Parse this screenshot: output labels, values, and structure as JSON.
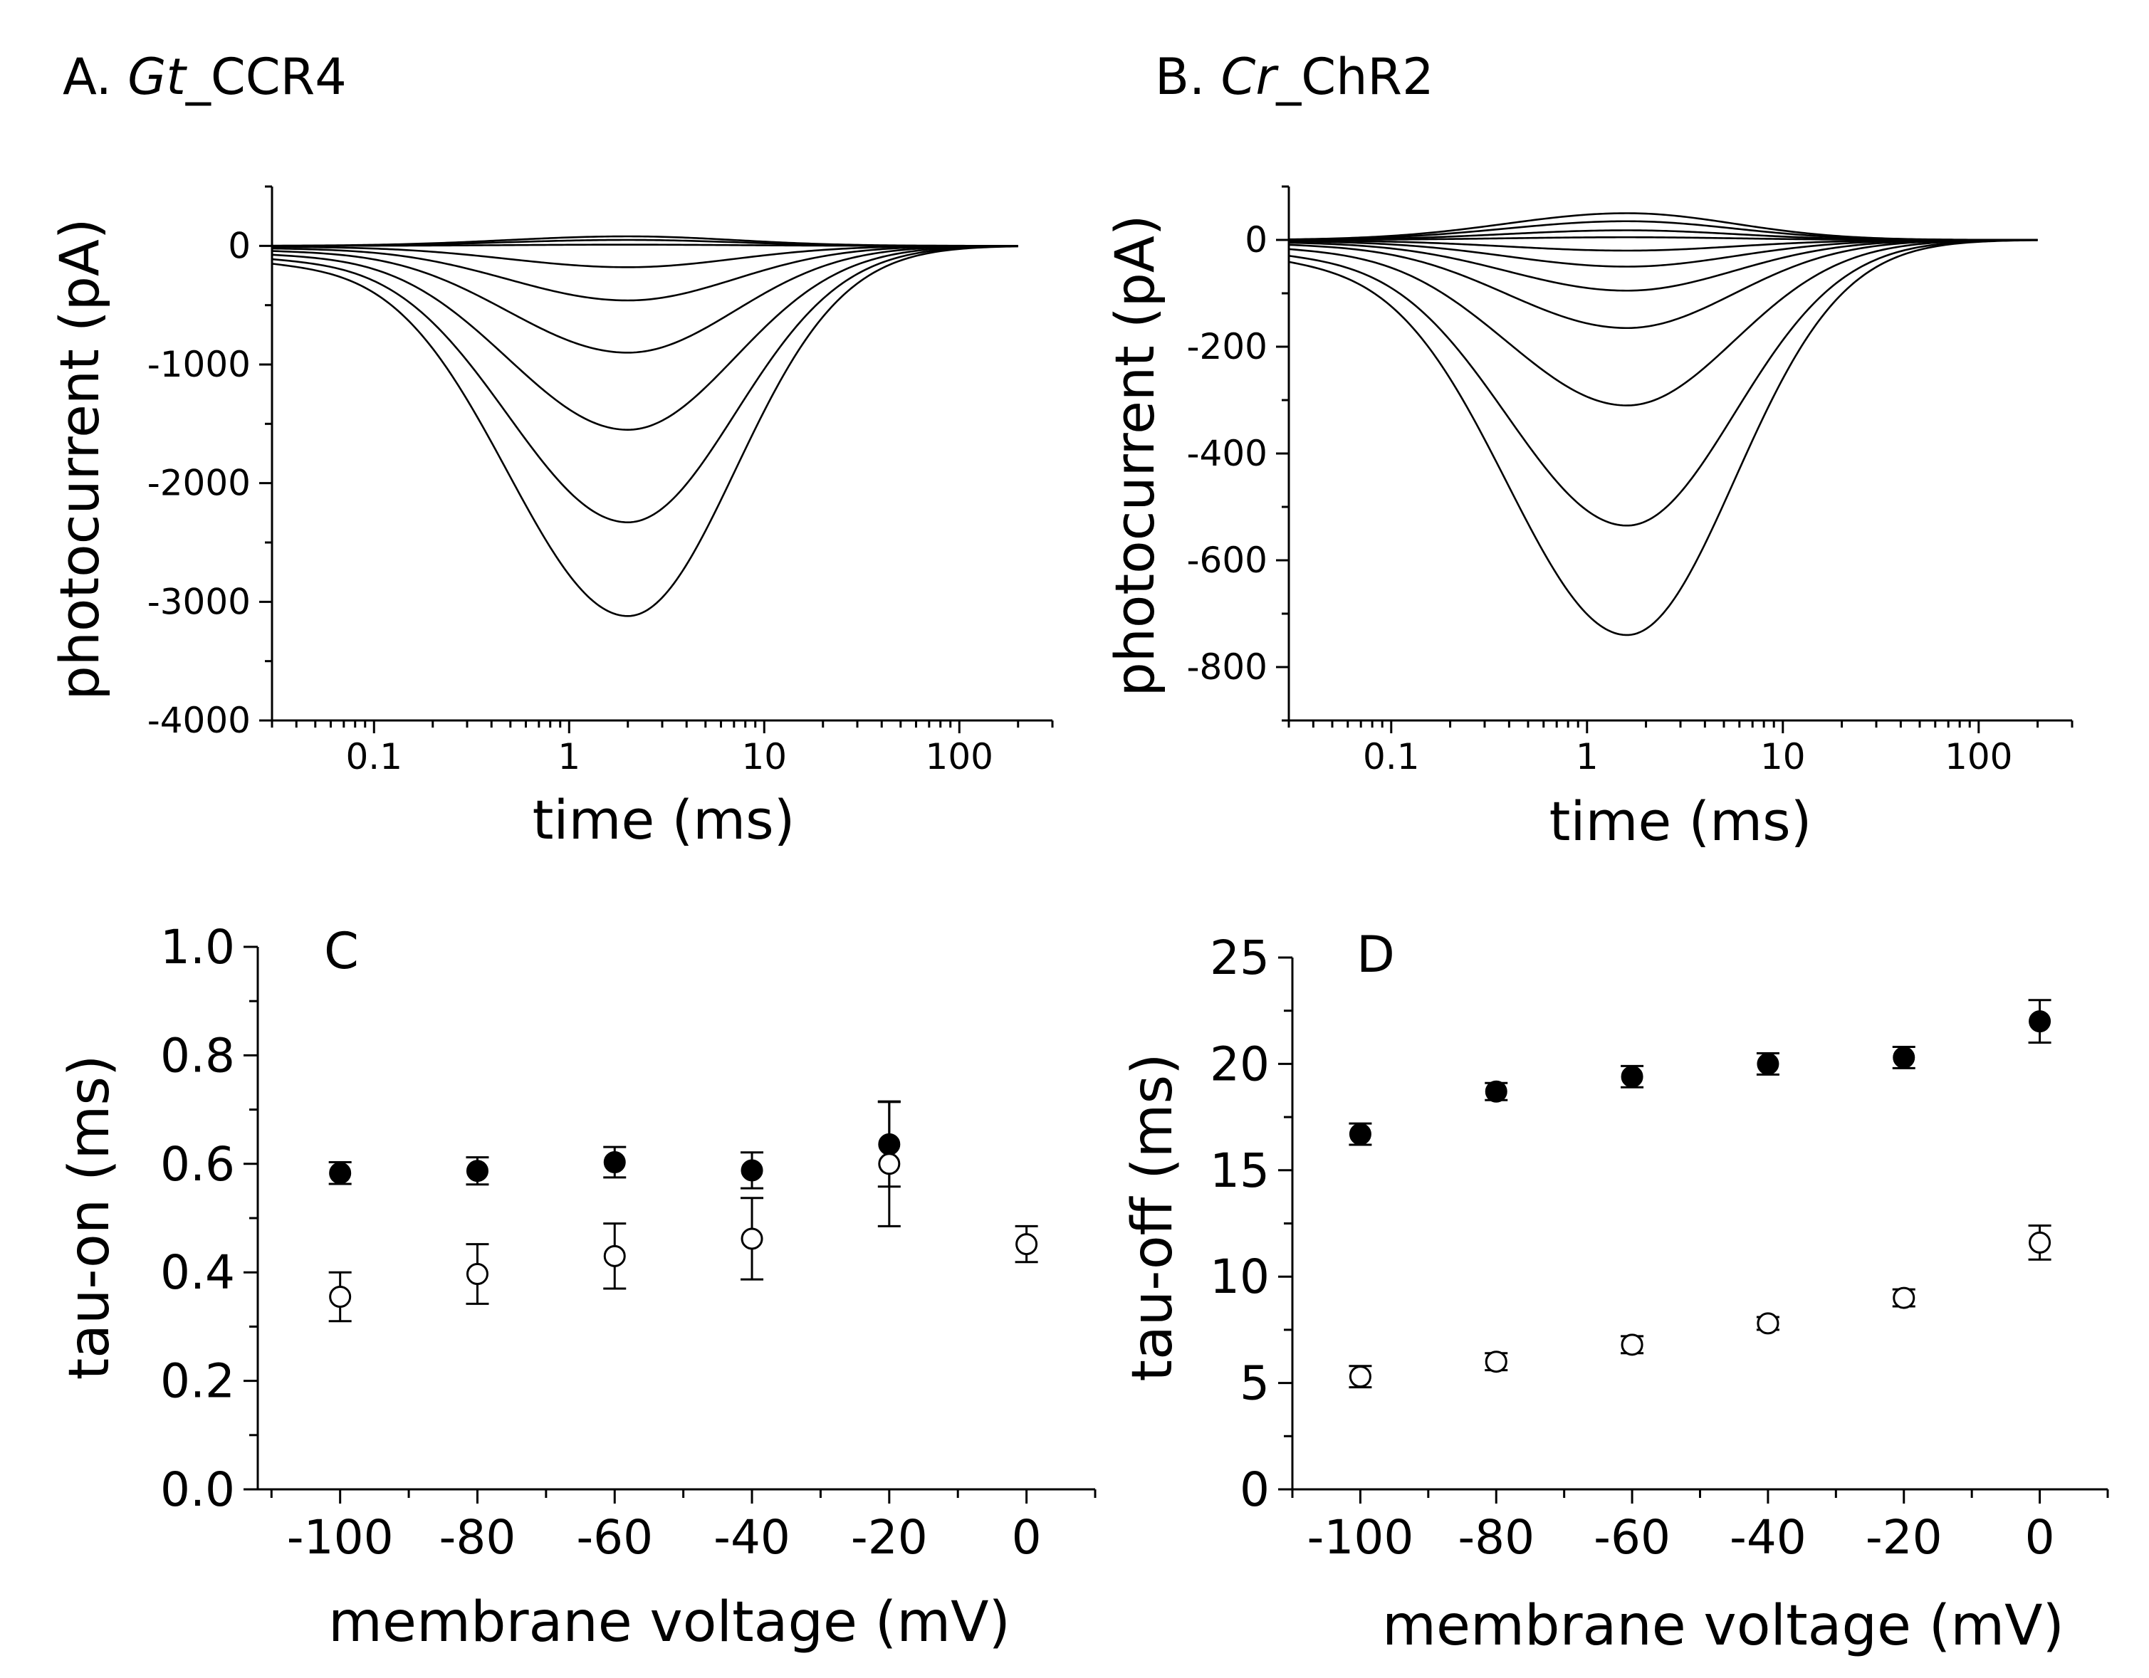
{
  "chart_data": [
    {
      "id": "A",
      "type": "line",
      "title_prefix": "A. ",
      "title_italic": "Gt",
      "title_suffix": "_CCR4",
      "xlabel": "time (ms)",
      "ylabel": "photocurrent (pA)",
      "xscale": "log",
      "xlim": [
        0.03,
        300
      ],
      "ylim": [
        -4000,
        500
      ],
      "xticks": [
        0.1,
        1,
        10,
        100
      ],
      "xtick_labels": [
        "0.1",
        "1",
        "10",
        "100"
      ],
      "yticks": [
        0,
        -1000,
        -2000,
        -3000,
        -4000
      ],
      "ytick_labels": [
        "0",
        "-1000",
        "-2000",
        "-3000",
        "-4000"
      ],
      "trace_peaks": [
        80,
        50,
        10,
        -180,
        -460,
        -900,
        -1550,
        -2330,
        -3120
      ],
      "peak_time_ms": 2,
      "end_time_ms": 200
    },
    {
      "id": "B",
      "type": "line",
      "title_prefix": "B. ",
      "title_italic": "Cr",
      "title_suffix": "_ChR2",
      "xlabel": "time (ms)",
      "ylabel": "photocurrent (pA)",
      "xscale": "log",
      "xlim": [
        0.03,
        300
      ],
      "ylim": [
        -900,
        100
      ],
      "xticks": [
        0.1,
        1,
        10,
        100
      ],
      "xtick_labels": [
        "0.1",
        "1",
        "10",
        "100"
      ],
      "yticks": [
        0,
        -200,
        -400,
        -600,
        -800
      ],
      "ytick_labels": [
        "0",
        "-200",
        "-400",
        "-600",
        "-800"
      ],
      "trace_peaks": [
        50,
        35,
        18,
        5,
        -20,
        -50,
        -95,
        -165,
        -310,
        -535,
        -740
      ],
      "peak_time_ms": 1.6,
      "end_time_ms": 200
    },
    {
      "id": "C",
      "type": "scatter",
      "panel_label": "C",
      "xlabel": "membrane voltage (mV)",
      "ylabel": "tau-on (ms)",
      "xlim": [
        -112,
        10
      ],
      "ylim": [
        0.0,
        1.0
      ],
      "xticks": [
        -100,
        -80,
        -60,
        -40,
        -20,
        0
      ],
      "xtick_labels": [
        "-100",
        "-80",
        "-60",
        "-40",
        "-20",
        "0"
      ],
      "yticks": [
        0.0,
        0.2,
        0.4,
        0.6,
        0.8,
        1.0
      ],
      "ytick_labels": [
        "0.0",
        "0.2",
        "0.4",
        "0.6",
        "0.8",
        "1.0"
      ],
      "series": [
        {
          "name": "Gt_CCR4",
          "marker": "filled-circle",
          "x": [
            -100,
            -80,
            -60,
            -40,
            -20
          ],
          "y": [
            0.583,
            0.587,
            0.603,
            0.588,
            0.636
          ],
          "err": [
            0.02,
            0.025,
            0.028,
            0.033,
            0.078
          ]
        },
        {
          "name": "Cr_ChR2",
          "marker": "open-circle",
          "x": [
            -100,
            -80,
            -60,
            -40,
            -20,
            0
          ],
          "y": [
            0.355,
            0.397,
            0.43,
            0.462,
            0.6,
            0.452
          ],
          "err": [
            0.045,
            0.055,
            0.06,
            0.075,
            0.115,
            0.033
          ]
        }
      ]
    },
    {
      "id": "D",
      "type": "scatter",
      "panel_label": "D",
      "xlabel": "membrane voltage (mV)",
      "ylabel": "tau-off (ms)",
      "xlim": [
        -110,
        10
      ],
      "ylim": [
        0,
        25
      ],
      "xticks": [
        -100,
        -80,
        -60,
        -40,
        -20,
        0
      ],
      "xtick_labels": [
        "-100",
        "-80",
        "-60",
        "-40",
        "-20",
        "0"
      ],
      "yticks": [
        0,
        5,
        10,
        15,
        20,
        25
      ],
      "ytick_labels": [
        "0",
        "5",
        "10",
        "15",
        "20",
        "25"
      ],
      "series": [
        {
          "name": "Gt_CCR4",
          "marker": "filled-circle",
          "x": [
            -100,
            -80,
            -60,
            -40,
            -20,
            0
          ],
          "y": [
            16.7,
            18.7,
            19.4,
            20.0,
            20.3,
            22.0
          ],
          "err": [
            0.5,
            0.4,
            0.5,
            0.5,
            0.5,
            1.0
          ]
        },
        {
          "name": "Cr_ChR2",
          "marker": "open-circle",
          "x": [
            -100,
            -80,
            -60,
            -40,
            -20,
            0
          ],
          "y": [
            5.3,
            6.0,
            6.8,
            7.8,
            9.0,
            11.6
          ],
          "err": [
            0.5,
            0.4,
            0.4,
            0.3,
            0.4,
            0.8
          ]
        }
      ]
    }
  ]
}
